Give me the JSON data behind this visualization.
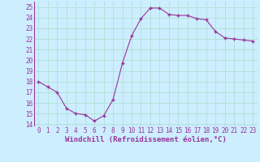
{
  "x": [
    0,
    1,
    2,
    3,
    4,
    5,
    6,
    7,
    8,
    9,
    10,
    11,
    12,
    13,
    14,
    15,
    16,
    17,
    18,
    19,
    20,
    21,
    22,
    23
  ],
  "y": [
    18,
    17.5,
    17,
    15.5,
    15,
    14.9,
    14.3,
    14.8,
    16.3,
    19.7,
    22.3,
    23.9,
    24.9,
    24.9,
    24.3,
    24.2,
    24.2,
    23.9,
    23.8,
    22.7,
    22.1,
    22.0,
    21.9,
    21.8
  ],
  "line_color": "#993399",
  "marker": "+",
  "marker_size": 3.0,
  "bg_color": "#cceeff",
  "grid_color": "#aaddcc",
  "xlabel": "Windchill (Refroidissement éolien,°C)",
  "xlabel_color": "#993399",
  "ylabel_ticks": [
    14,
    15,
    16,
    17,
    18,
    19,
    20,
    21,
    22,
    23,
    24,
    25
  ],
  "xlim": [
    -0.5,
    23.5
  ],
  "ylim": [
    13.8,
    25.5
  ],
  "tick_color": "#993399",
  "xlabel_fontsize": 6.5,
  "tick_fontsize": 5.5
}
